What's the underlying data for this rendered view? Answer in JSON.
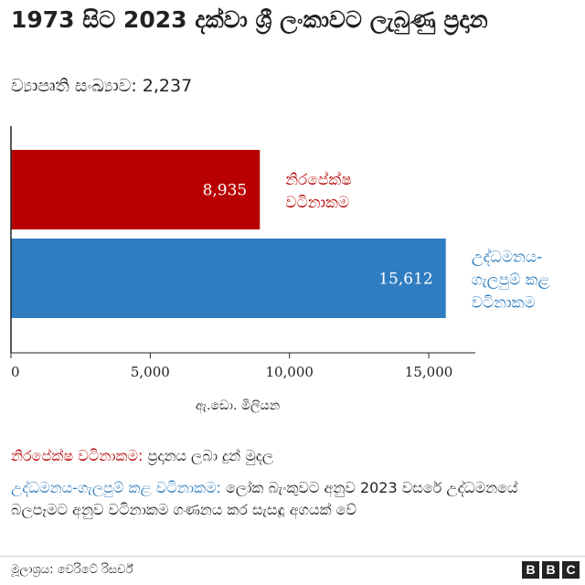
{
  "title": "1973 සිට 2023 දක්වා ශ්‍රී ලංකාවට ලැබුණු ප්‍රදාන",
  "subtitle": "ව්‍යාපෘති සංඛ්‍යාව: 2,237",
  "chart_data": {
    "type": "bar",
    "orientation": "horizontal",
    "categories": [
      "නිරපේක්ෂ වටිනාකම",
      "උද්ධමනය-ගැලපුම් කළ වටිනාකම"
    ],
    "category_lines": [
      [
        "නිරපේක්ෂ",
        "වටිනාකම"
      ],
      [
        "උද්ධමනය-",
        "ගැලපුම් කළ",
        "වටිනාකම"
      ]
    ],
    "values": [
      8935,
      15612
    ],
    "value_labels": [
      "8,935",
      "15,612"
    ],
    "colors": [
      "#b80000",
      "#2f7dc0"
    ],
    "xticks": [
      0,
      5000,
      10000,
      15000
    ],
    "xtick_labels": [
      "0",
      "5,000",
      "10,000",
      "15,000"
    ],
    "xlim": [
      0,
      17000
    ],
    "xlabel": "ඇ.ඩො. මිලියන",
    "grid": false
  },
  "notes": [
    {
      "term": "නිරපේක්ෂ වටිනාකම:",
      "text": " ප්‍රදානය ලබා දුන් මුදල"
    },
    {
      "term": "උද්ධමනය-ගැලපුම් කළ වටිනාකම:",
      "text": " ලෝක බැංකුවට අනුව 2023 වසරේ උද්ධමනයේ බලපෑමට අනුව වටිනාකම ගණනය කර සැසඳූ අගයක් වේ"
    }
  ],
  "source": "මූලාශ්‍රය: වෙරිටේ රිසර්ච්",
  "logo_letters": [
    "B",
    "B",
    "C"
  ]
}
